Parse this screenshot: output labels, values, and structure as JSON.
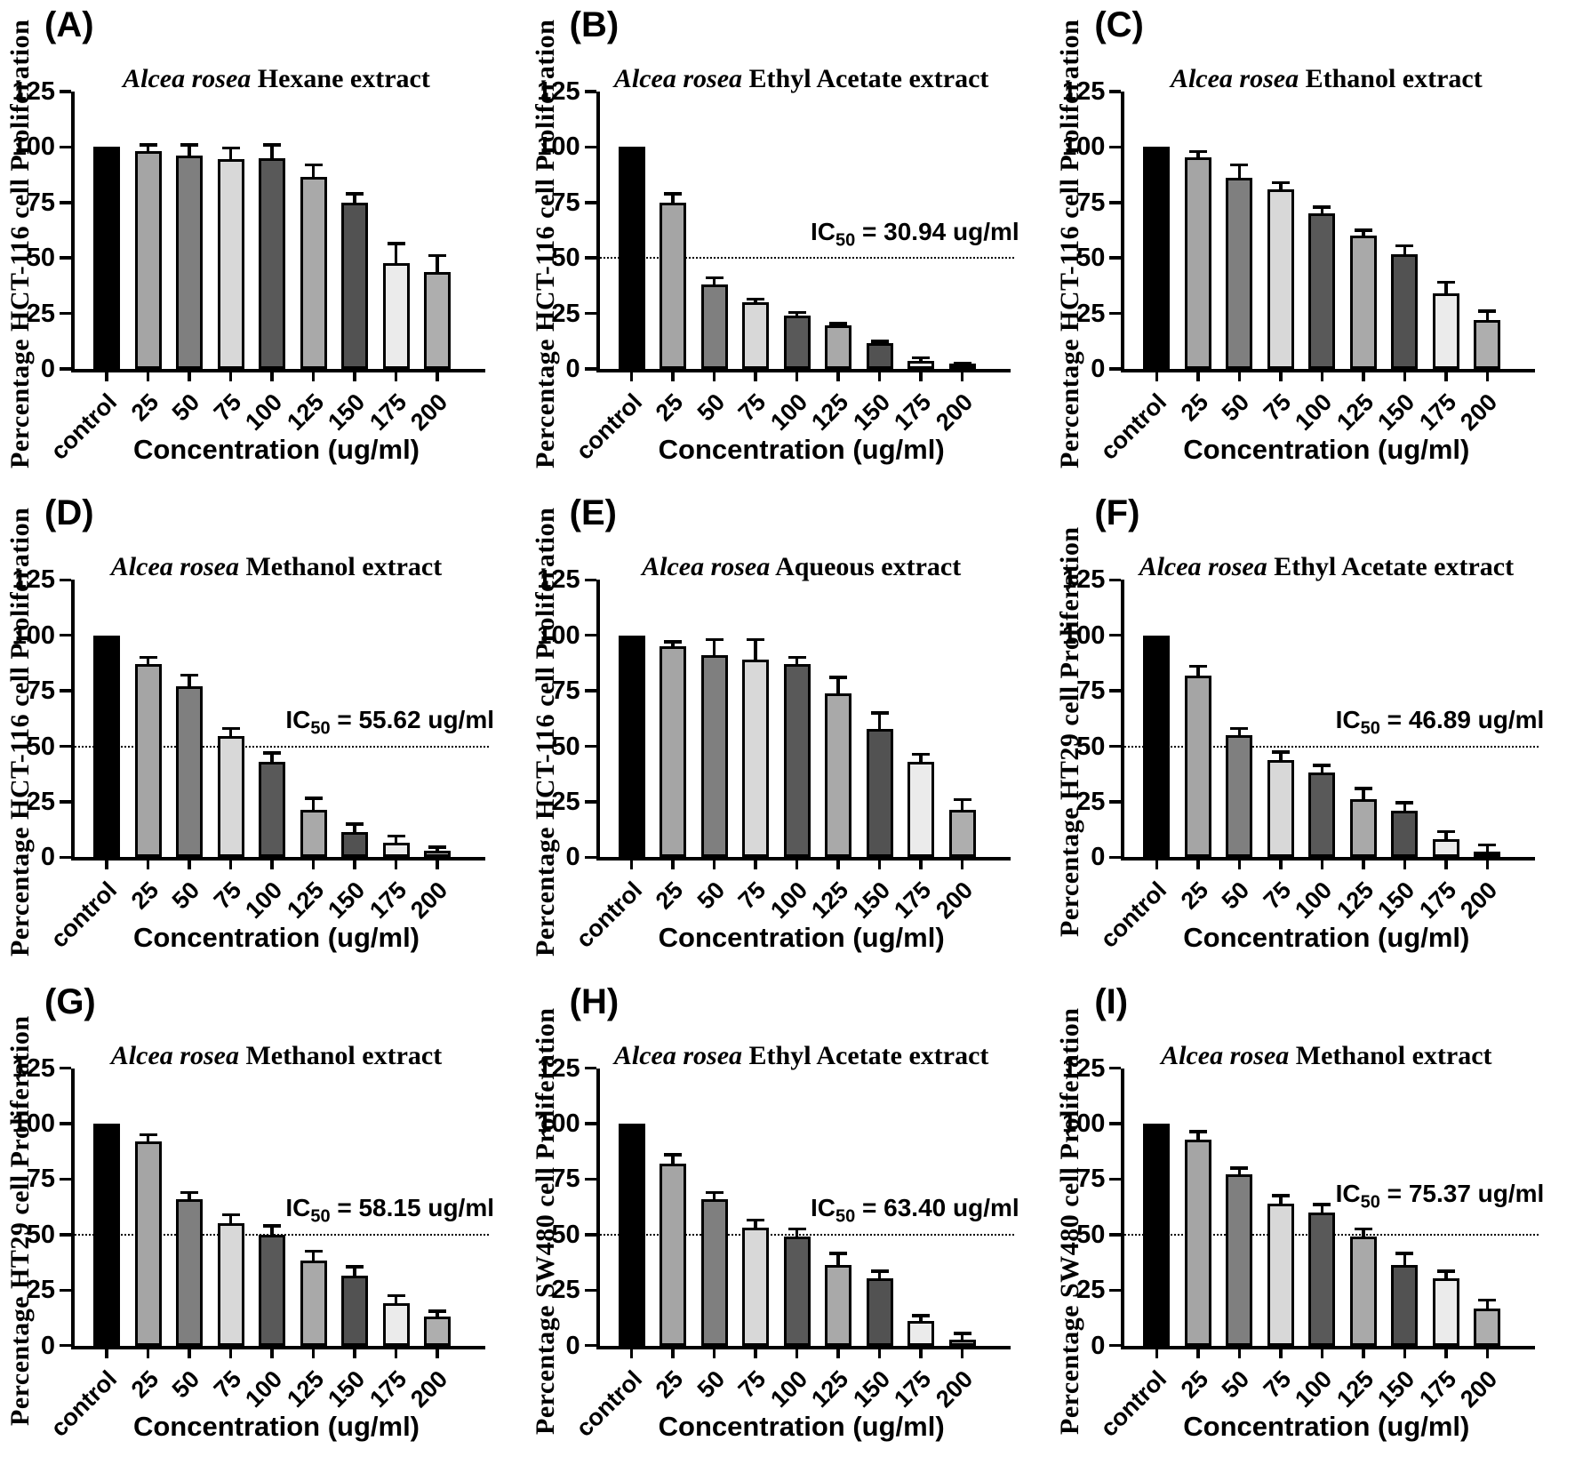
{
  "shared": {
    "categories": [
      "control",
      "25",
      "50",
      "75",
      "100",
      "125",
      "150",
      "175",
      "200"
    ],
    "xlabel": "Concentration (ug/ml)",
    "yticks": [
      0,
      25,
      50,
      75,
      100,
      125
    ],
    "ylim": [
      0,
      125
    ],
    "bar_colors": [
      "#000000",
      "#a5a5a5",
      "#7f7f7f",
      "#d8d8d8",
      "#595959",
      "#a9a9a9",
      "#525252",
      "#ebebeb",
      "#aeaeae"
    ],
    "axis_color": "#000000",
    "grid": "off",
    "error_bar_style": "upper SD whisker with cap"
  },
  "chart_data": [
    {
      "type": "bar",
      "panel_letter": "(A)",
      "title_italic": "Alcea rosea",
      "title_rest": " Hexane extract",
      "ylabel": "Percentage HCT-116 cell Proliferation",
      "xlabel": "Concentration (ug/ml)",
      "categories": [
        "control",
        "25",
        "50",
        "75",
        "100",
        "125",
        "150",
        "175",
        "200"
      ],
      "values": [
        100,
        98,
        96,
        94.5,
        95,
        86.5,
        75,
        47.5,
        43.5
      ],
      "errors": [
        0,
        3,
        5,
        5,
        6,
        5.5,
        4,
        9,
        7.5
      ],
      "ylim": [
        0,
        125
      ],
      "ic50": null
    },
    {
      "type": "bar",
      "panel_letter": "(B)",
      "title_italic": "Alcea rosea",
      "title_rest": " Ethyl Acetate extract",
      "ylabel": "Percentage HCT-116 cell Proliferation",
      "xlabel": "Concentration (ug/ml)",
      "categories": [
        "control",
        "25",
        "50",
        "75",
        "100",
        "125",
        "150",
        "175",
        "200"
      ],
      "values": [
        100,
        75,
        38,
        30,
        24,
        19.5,
        11.5,
        3.5,
        1.5
      ],
      "errors": [
        0,
        4,
        3,
        1.5,
        1.5,
        1,
        1,
        1.5,
        1
      ],
      "ylim": [
        0,
        125
      ],
      "ic50": {
        "prefix": "IC",
        "sub": "50",
        "rest": " = 30.94 ug/ml",
        "line_y": 50
      }
    },
    {
      "type": "bar",
      "panel_letter": "(C)",
      "title_italic": "Alcea rosea",
      "title_rest": " Ethanol extract",
      "ylabel": "Percentage HCT-116 cell Proliferation",
      "xlabel": "Concentration (ug/ml)",
      "categories": [
        "control",
        "25",
        "50",
        "75",
        "100",
        "125",
        "150",
        "175",
        "200"
      ],
      "values": [
        100,
        95.5,
        86,
        81,
        70,
        60,
        51.5,
        34,
        22
      ],
      "errors": [
        0,
        2.5,
        6,
        3,
        3,
        2.5,
        4,
        5,
        4
      ],
      "ylim": [
        0,
        125
      ],
      "ic50": null
    },
    {
      "type": "bar",
      "panel_letter": "(D)",
      "title_italic": "Alcea rosea",
      "title_rest": " Methanol extract",
      "ylabel": "Percentage HCT-116 cell Proliferation",
      "xlabel": "Concentration (ug/ml)",
      "categories": [
        "control",
        "25",
        "50",
        "75",
        "100",
        "125",
        "150",
        "175",
        "200"
      ],
      "values": [
        100,
        87,
        77,
        54.5,
        43,
        21.5,
        11.5,
        6.5,
        3
      ],
      "errors": [
        0,
        3,
        5,
        3.5,
        4,
        5,
        3.5,
        3,
        1.5
      ],
      "ylim": [
        0,
        125
      ],
      "ic50": {
        "prefix": "IC",
        "sub": "50",
        "rest": " = 55.62 ug/ml",
        "line_y": 50
      }
    },
    {
      "type": "bar",
      "panel_letter": "(E)",
      "title_italic": "Alcea rosea",
      "title_rest": " Aqueous extract",
      "ylabel": "Percentage HCT-116 cell Proliferation",
      "xlabel": "Concentration (ug/ml)",
      "categories": [
        "control",
        "25",
        "50",
        "75",
        "100",
        "125",
        "150",
        "175",
        "200"
      ],
      "values": [
        100,
        95,
        91,
        89,
        87,
        74,
        58,
        43,
        21.5
      ],
      "errors": [
        0,
        2,
        7,
        9,
        3,
        7,
        7,
        3.5,
        4.5
      ],
      "ylim": [
        0,
        125
      ],
      "ic50": null
    },
    {
      "type": "bar",
      "panel_letter": "(F)",
      "title_italic": "Alcea rosea",
      "title_rest": " Ethyl Acetate extract",
      "ylabel": "Percentage HT29 cell Proliferation",
      "xlabel": "Concentration (ug/ml)",
      "categories": [
        "control",
        "25",
        "50",
        "75",
        "100",
        "125",
        "150",
        "175",
        "200"
      ],
      "values": [
        100,
        82,
        55,
        44,
        38,
        26,
        21,
        8,
        2.5
      ],
      "errors": [
        0,
        4,
        3,
        3.5,
        3.5,
        5,
        3.5,
        3.5,
        3
      ],
      "ylim": [
        0,
        125
      ],
      "ic50": {
        "prefix": "IC",
        "sub": "50",
        "rest": " = 46.89 ug/ml",
        "line_y": 50
      }
    },
    {
      "type": "bar",
      "panel_letter": "(G)",
      "title_italic": "Alcea rosea",
      "title_rest": " Methanol extract",
      "ylabel": "Percentage HT29 cell Proliferation",
      "xlabel": "Concentration (ug/ml)",
      "categories": [
        "control",
        "25",
        "50",
        "75",
        "100",
        "125",
        "150",
        "175",
        "200"
      ],
      "values": [
        100,
        92,
        66,
        55,
        50,
        38.5,
        31.5,
        19,
        13
      ],
      "errors": [
        0,
        3,
        3,
        4,
        4,
        4,
        4,
        3.5,
        2.5
      ],
      "ylim": [
        0,
        125
      ],
      "ic50": {
        "prefix": "IC",
        "sub": "50",
        "rest": " = 58.15 ug/ml",
        "line_y": 50
      }
    },
    {
      "type": "bar",
      "panel_letter": "(H)",
      "title_italic": "Alcea rosea",
      "title_rest": " Ethyl Acetate extract",
      "ylabel": "Percentage SW480 cell Proliferation",
      "xlabel": "Concentration (ug/ml)",
      "categories": [
        "control",
        "25",
        "50",
        "75",
        "100",
        "125",
        "150",
        "175",
        "200"
      ],
      "values": [
        100,
        82,
        66,
        53,
        49,
        36.5,
        30.5,
        11,
        2.5
      ],
      "errors": [
        0,
        4,
        3,
        3.5,
        3.5,
        5,
        3,
        2.5,
        3
      ],
      "ylim": [
        0,
        125
      ],
      "ic50": {
        "prefix": "IC",
        "sub": "50",
        "rest": " = 63.40 ug/ml",
        "line_y": 50
      }
    },
    {
      "type": "bar",
      "panel_letter": "(I)",
      "title_italic": "Alcea rosea",
      "title_rest": " Methanol extract",
      "ylabel": "Percentage SW480 cell Proliferation",
      "xlabel": "Concentration (ug/ml)",
      "categories": [
        "control",
        "25",
        "50",
        "75",
        "100",
        "125",
        "150",
        "175",
        "200"
      ],
      "values": [
        100,
        93,
        77,
        64,
        60,
        49,
        36.5,
        30.5,
        16.5
      ],
      "errors": [
        0,
        3.5,
        3,
        3.5,
        3.5,
        3.5,
        5,
        3,
        4
      ],
      "ylim": [
        0,
        125
      ],
      "ic50": {
        "prefix": "IC",
        "sub": "50",
        "rest": " = 75.37 ug/ml",
        "line_y": 50
      }
    }
  ]
}
